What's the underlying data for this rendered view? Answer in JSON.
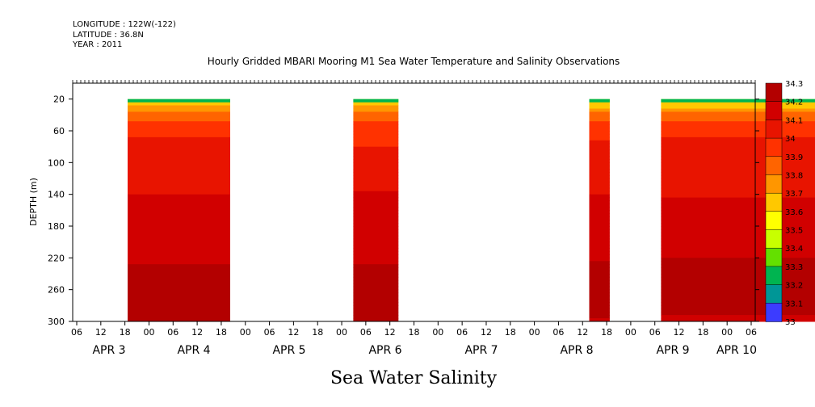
{
  "header": {
    "longitude": "LONGITUDE : 122W(-122)",
    "latitude": "LATITUDE : 36.8N",
    "year": "YEAR : 2011"
  },
  "chart_data": {
    "type": "heatmap",
    "title": "Hourly Gridded MBARI Mooring M1 Sea Water Temperature and Salinity Observations",
    "xlabel": "Sea Water Salinity",
    "ylabel": "DEPTH (m)",
    "x_hours": [
      "06",
      "12",
      "18",
      "00",
      "06",
      "12",
      "18",
      "00",
      "06",
      "12",
      "18",
      "00",
      "06",
      "12",
      "18",
      "00",
      "06",
      "12",
      "18",
      "00",
      "06",
      "12",
      "18",
      "00",
      "06",
      "12",
      "18",
      "00",
      "06"
    ],
    "x_days": [
      "APR  3",
      "APR  4",
      "APR  5",
      "APR  6",
      "APR  7",
      "APR  8",
      "APR  9",
      "APR 10"
    ],
    "y_ticks": [
      20,
      60,
      100,
      140,
      180,
      220,
      260,
      300
    ],
    "ylim": [
      300,
      0
    ],
    "colorbar": {
      "levels": [
        "34.3",
        "34.2",
        "34.1",
        "34",
        "33.9",
        "33.8",
        "33.7",
        "33.6",
        "33.5",
        "33.4",
        "33.3",
        "33.2",
        "33.1",
        "33"
      ],
      "colors": [
        "#b30000",
        "#d10000",
        "#e81400",
        "#ff3200",
        "#ff6400",
        "#ff9600",
        "#ffc800",
        "#ffff00",
        "#c8ff00",
        "#64e000",
        "#00b450",
        "#009696",
        "#3c3cff",
        "#9b30ff"
      ]
    },
    "data_segments_days": [
      [
        0.5,
        1.0
      ],
      [
        1.6,
        1.82
      ],
      [
        2.75,
        2.85
      ],
      [
        3.1,
        4.6
      ],
      [
        4.75,
        4.88
      ],
      [
        5.0,
        6.85
      ]
    ],
    "profile": [
      {
        "depth": 20,
        "value": 33.55
      },
      {
        "depth": 30,
        "value": 33.7
      },
      {
        "depth": 40,
        "value": 33.85
      },
      {
        "depth": 55,
        "value": 33.95
      },
      {
        "depth": 70,
        "value": 34.0
      },
      {
        "depth": 90,
        "value": 34.02
      },
      {
        "depth": 110,
        "value": 34.05
      },
      {
        "depth": 130,
        "value": 34.08
      },
      {
        "depth": 150,
        "value": 34.12
      },
      {
        "depth": 190,
        "value": 34.15
      },
      {
        "depth": 215,
        "value": 34.18
      },
      {
        "depth": 235,
        "value": 34.22
      },
      {
        "depth": 250,
        "value": 34.28
      },
      {
        "depth": 265,
        "value": 34.25
      },
      {
        "depth": 285,
        "value": 34.22
      },
      {
        "depth": 300,
        "value": 34.2
      }
    ]
  }
}
